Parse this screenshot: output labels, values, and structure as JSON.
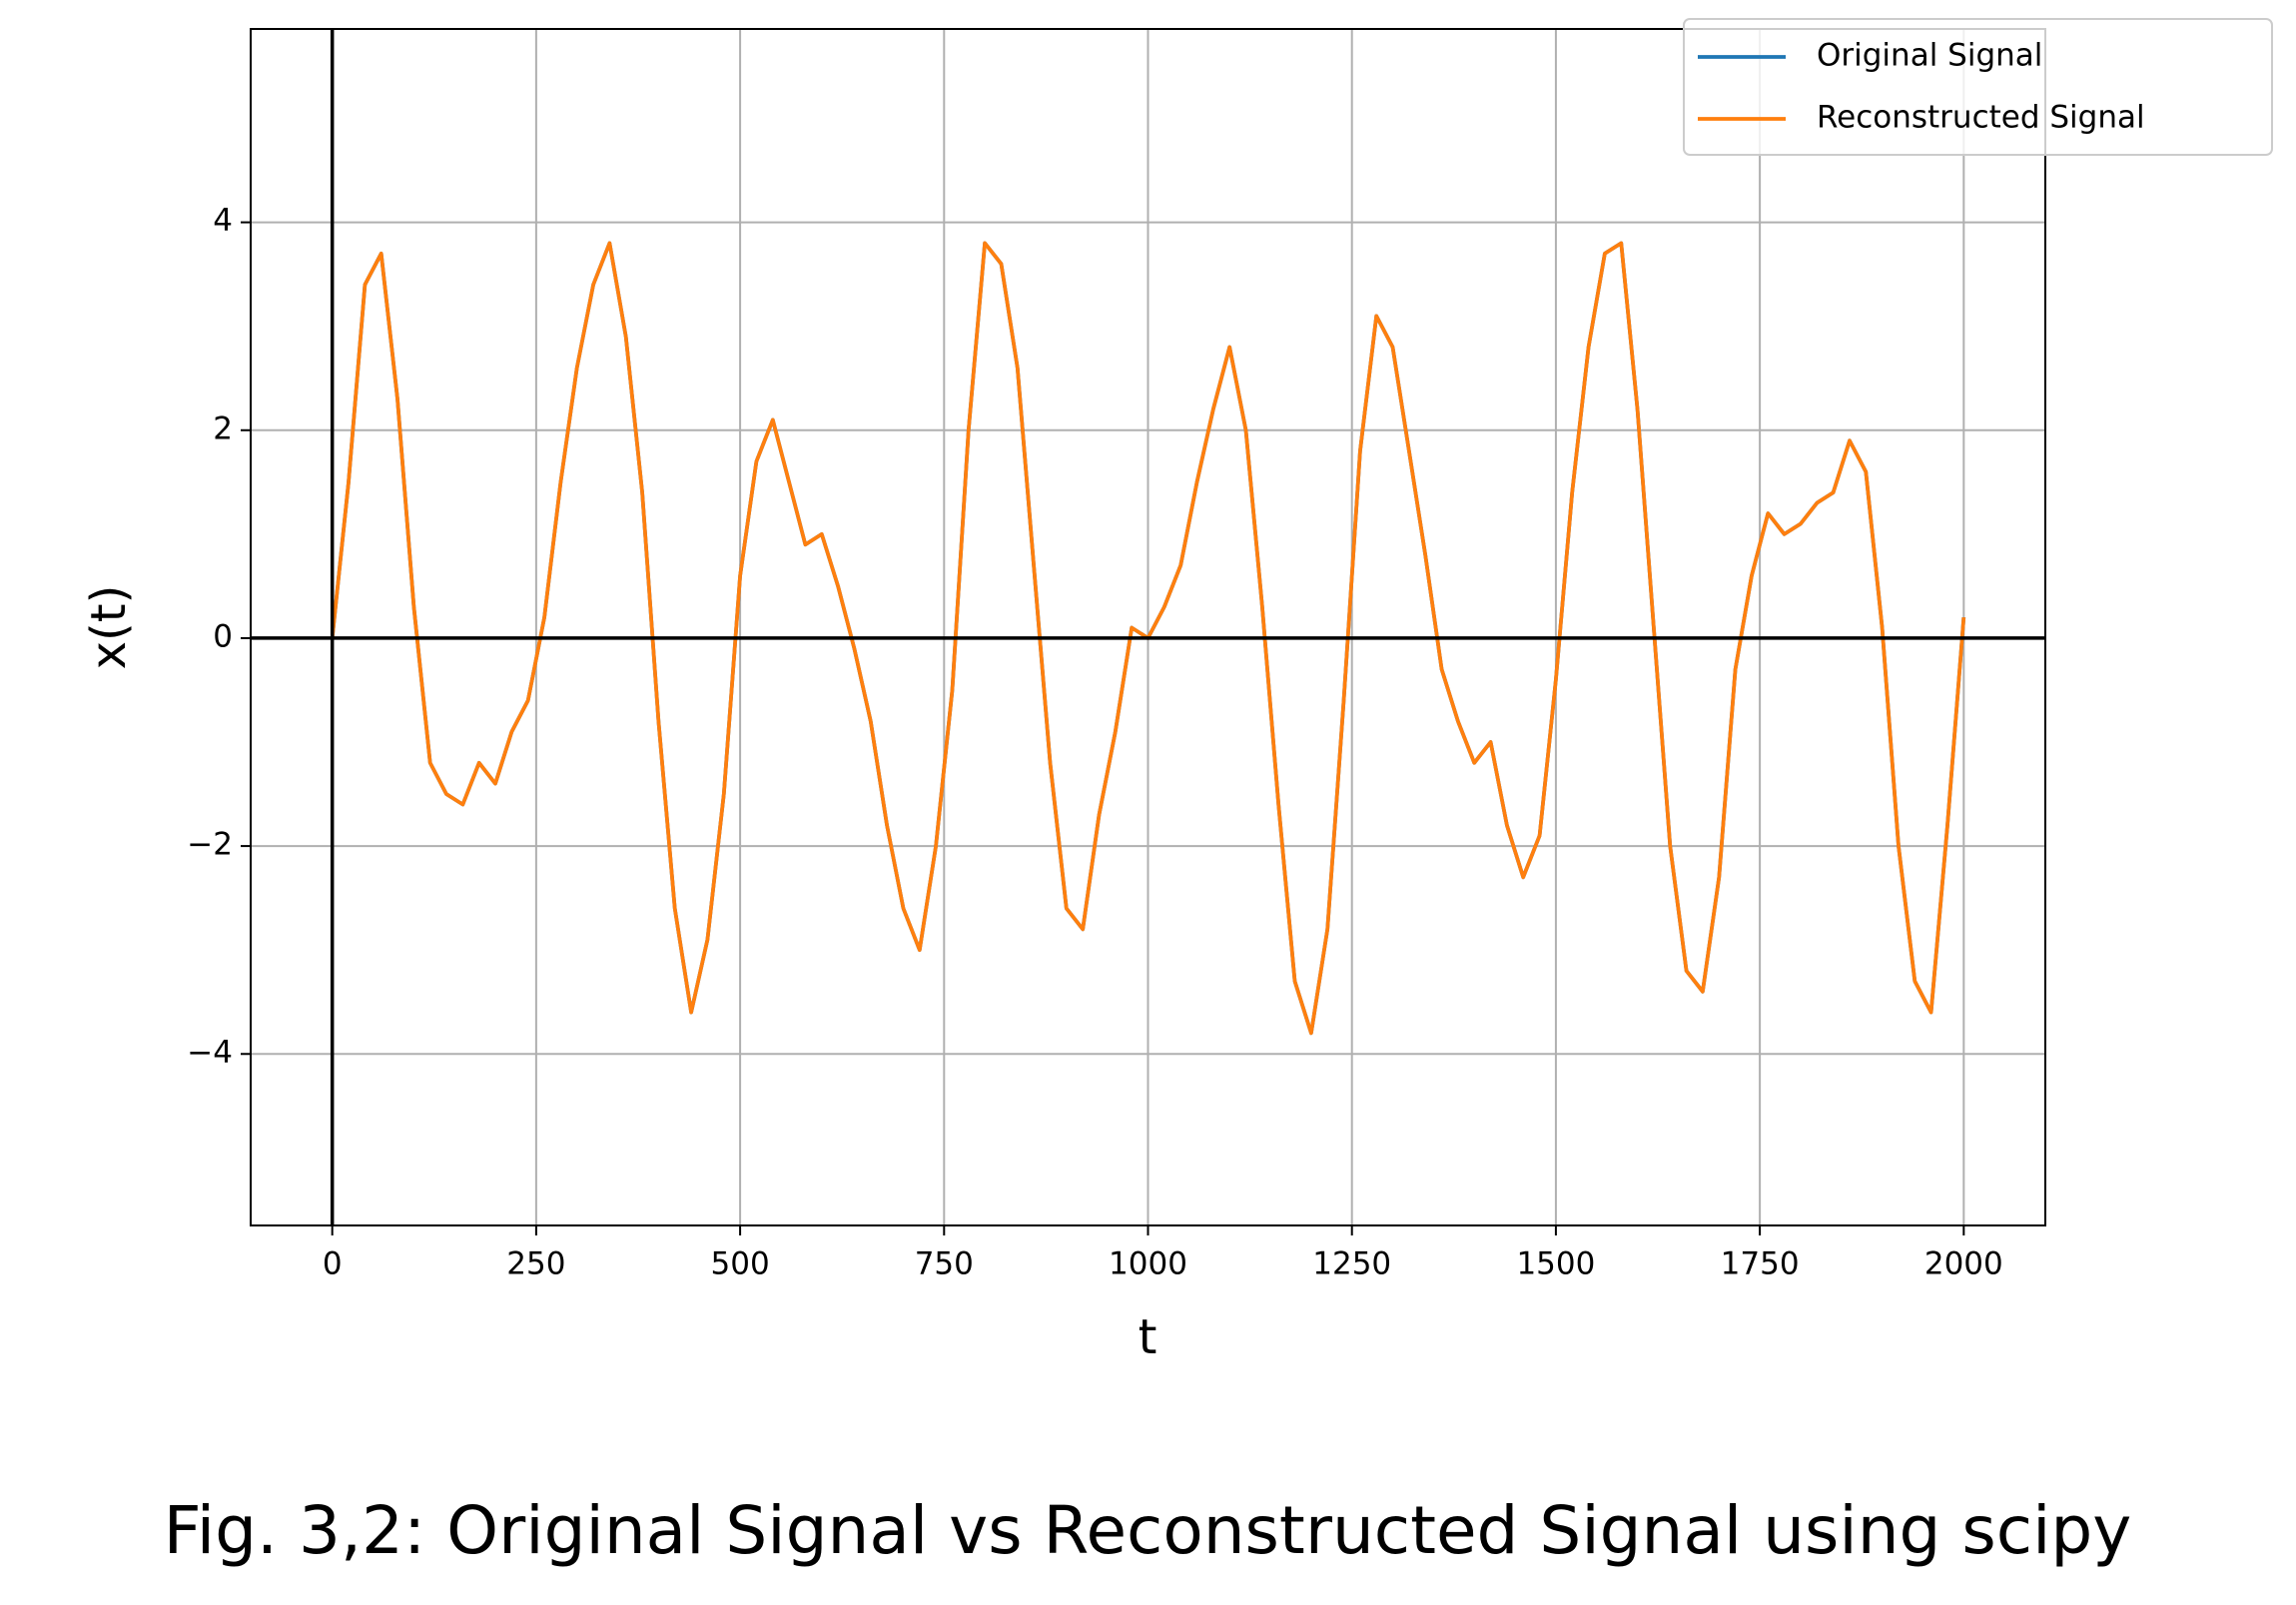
{
  "chart_data": {
    "type": "line",
    "caption": "Fig. 3,2: Original Signal vs Reconstructed Signal using scipy",
    "x_label": "t",
    "y_label": "x(t)",
    "x": [
      0,
      20,
      40,
      60,
      80,
      100,
      120,
      140,
      160,
      180,
      200,
      220,
      240,
      260,
      280,
      300,
      320,
      340,
      360,
      380,
      400,
      420,
      440,
      460,
      480,
      500,
      520,
      540,
      560,
      580,
      600,
      620,
      640,
      660,
      680,
      700,
      720,
      740,
      760,
      780,
      800,
      820,
      840,
      860,
      880,
      900,
      920,
      940,
      960,
      980,
      1000,
      1020,
      1040,
      1060,
      1080,
      1100,
      1120,
      1140,
      1160,
      1180,
      1200,
      1220,
      1240,
      1260,
      1280,
      1300,
      1320,
      1340,
      1360,
      1380,
      1400,
      1420,
      1440,
      1460,
      1480,
      1500,
      1520,
      1540,
      1560,
      1580,
      1600,
      1620,
      1640,
      1660,
      1680,
      1700,
      1720,
      1740,
      1760,
      1780,
      1800,
      1820,
      1840,
      1860,
      1880,
      1900,
      1920,
      1940,
      1960,
      1980,
      2000
    ],
    "series": [
      {
        "name": "Original Signal",
        "color": "#1f77b4",
        "values": [
          0,
          1.5,
          3.4,
          3.7,
          2.3,
          0.3,
          -1.2,
          -1.5,
          -1.6,
          -1.2,
          -1.4,
          -0.9,
          -0.6,
          0.2,
          1.5,
          2.6,
          3.4,
          3.8,
          2.9,
          1.4,
          -0.8,
          -2.6,
          -3.6,
          -2.9,
          -1.5,
          0.6,
          1.7,
          2.1,
          1.5,
          0.9,
          1.0,
          0.5,
          -0.1,
          -0.8,
          -1.8,
          -2.6,
          -3.0,
          -2.0,
          -0.5,
          2.0,
          3.8,
          3.6,
          2.6,
          0.7,
          -1.2,
          -2.6,
          -2.8,
          -1.7,
          -0.9,
          0.1,
          0.0,
          0.3,
          0.7,
          1.5,
          2.2,
          2.8,
          2.0,
          0.3,
          -1.6,
          -3.3,
          -3.8,
          -2.8,
          -0.6,
          1.8,
          3.1,
          2.8,
          1.8,
          0.8,
          -0.3,
          -0.8,
          -1.2,
          -1.0,
          -1.8,
          -2.3,
          -1.9,
          -0.4,
          1.4,
          2.8,
          3.7,
          3.8,
          2.2,
          0.1,
          -2.0,
          -3.2,
          -3.4,
          -2.3,
          -0.3,
          0.6,
          1.2,
          1.0,
          1.1,
          1.3,
          1.4,
          1.9,
          1.6,
          0.1,
          -2.0,
          -3.3,
          -3.6,
          -1.8,
          0.2
        ]
      },
      {
        "name": "Reconstructed Signal",
        "color": "#ff7f0e",
        "values": [
          0,
          1.5,
          3.4,
          3.7,
          2.3,
          0.3,
          -1.2,
          -1.5,
          -1.6,
          -1.2,
          -1.4,
          -0.9,
          -0.6,
          0.2,
          1.5,
          2.6,
          3.4,
          3.8,
          2.9,
          1.4,
          -0.8,
          -2.6,
          -3.6,
          -2.9,
          -1.5,
          0.6,
          1.7,
          2.1,
          1.5,
          0.9,
          1.0,
          0.5,
          -0.1,
          -0.8,
          -1.8,
          -2.6,
          -3.0,
          -2.0,
          -0.5,
          2.0,
          3.8,
          3.6,
          2.6,
          0.7,
          -1.2,
          -2.6,
          -2.8,
          -1.7,
          -0.9,
          0.1,
          0.0,
          0.3,
          0.7,
          1.5,
          2.2,
          2.8,
          2.0,
          0.3,
          -1.6,
          -3.3,
          -3.8,
          -2.8,
          -0.6,
          1.8,
          3.1,
          2.8,
          1.8,
          0.8,
          -0.3,
          -0.8,
          -1.2,
          -1.0,
          -1.8,
          -2.3,
          -1.9,
          -0.4,
          1.4,
          2.8,
          3.7,
          3.8,
          2.2,
          0.1,
          -2.0,
          -3.2,
          -3.4,
          -2.3,
          -0.3,
          0.6,
          1.2,
          1.0,
          1.1,
          1.3,
          1.4,
          1.9,
          1.6,
          0.1,
          -2.0,
          -3.3,
          -3.6,
          -1.8,
          0.2
        ]
      }
    ],
    "xlim": [
      -100,
      2100
    ],
    "ylim": [
      -5.65,
      5.86
    ],
    "xticks": [
      0,
      250,
      500,
      750,
      1000,
      1250,
      1500,
      1750,
      2000
    ],
    "yticks": [
      {
        "value": -4,
        "label": "−4"
      },
      {
        "value": -2,
        "label": "−2"
      },
      0,
      2,
      4
    ],
    "hlines": [
      0
    ],
    "vlines": [
      0
    ],
    "grid": true,
    "legend": "upper right"
  }
}
